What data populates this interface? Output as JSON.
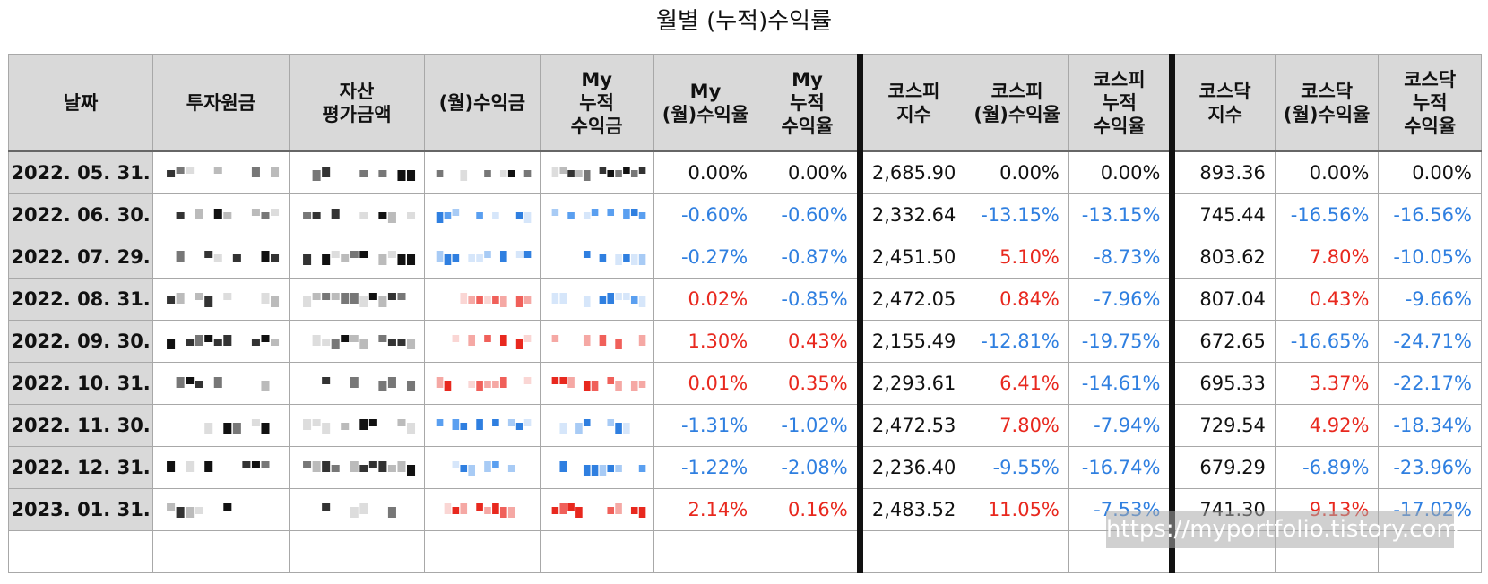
{
  "title": "월별 (누적)수익률",
  "headers": [
    [
      "날짜"
    ],
    [
      "투자원금"
    ],
    [
      "자산",
      "평가금액"
    ],
    [
      "(월)수익금"
    ],
    [
      "My",
      "누적",
      "수익금"
    ],
    [
      "My",
      "(월)수익율"
    ],
    [
      "My",
      "누적",
      "수익율"
    ],
    [
      "코스피",
      "지수"
    ],
    [
      "코스피",
      "(월)수익율"
    ],
    [
      "코스피",
      "누적",
      "수익율"
    ],
    [
      "코스닥",
      "지수"
    ],
    [
      "코스닥",
      "(월)수익율"
    ],
    [
      "코스닥",
      "누적",
      "수익율"
    ]
  ],
  "rows": [
    {
      "date": "2022. 05. 31.",
      "my_month": "0.00%",
      "my_cum": "0.00%",
      "kospi": "2,685.90",
      "kospi_month": "0.00%",
      "kospi_cum": "0.00%",
      "kosdaq": "893.36",
      "kosdaq_month": "0.00%",
      "kosdaq_cum": "0.00%"
    },
    {
      "date": "2022. 06. 30.",
      "my_month": "-0.60%",
      "my_cum": "-0.60%",
      "kospi": "2,332.64",
      "kospi_month": "-13.15%",
      "kospi_cum": "-13.15%",
      "kosdaq": "745.44",
      "kosdaq_month": "-16.56%",
      "kosdaq_cum": "-16.56%"
    },
    {
      "date": "2022. 07. 29.",
      "my_month": "-0.27%",
      "my_cum": "-0.87%",
      "kospi": "2,451.50",
      "kospi_month": "5.10%",
      "kospi_cum": "-8.73%",
      "kosdaq": "803.62",
      "kosdaq_month": "7.80%",
      "kosdaq_cum": "-10.05%"
    },
    {
      "date": "2022. 08. 31.",
      "my_month": "0.02%",
      "my_cum": "-0.85%",
      "kospi": "2,472.05",
      "kospi_month": "0.84%",
      "kospi_cum": "-7.96%",
      "kosdaq": "807.04",
      "kosdaq_month": "0.43%",
      "kosdaq_cum": "-9.66%"
    },
    {
      "date": "2022. 09. 30.",
      "my_month": "1.30%",
      "my_cum": "0.43%",
      "kospi": "2,155.49",
      "kospi_month": "-12.81%",
      "kospi_cum": "-19.75%",
      "kosdaq": "672.65",
      "kosdaq_month": "-16.65%",
      "kosdaq_cum": "-24.71%"
    },
    {
      "date": "2022. 10. 31.",
      "my_month": "0.01%",
      "my_cum": "0.35%",
      "kospi": "2,293.61",
      "kospi_month": "6.41%",
      "kospi_cum": "-14.61%",
      "kosdaq": "695.33",
      "kosdaq_month": "3.37%",
      "kosdaq_cum": "-22.17%"
    },
    {
      "date": "2022. 11. 30.",
      "my_month": "-1.31%",
      "my_cum": "-1.02%",
      "kospi": "2,472.53",
      "kospi_month": "7.80%",
      "kospi_cum": "-7.94%",
      "kosdaq": "729.54",
      "kosdaq_month": "4.92%",
      "kosdaq_cum": "-18.34%"
    },
    {
      "date": "2022. 12. 31.",
      "my_month": "-1.22%",
      "my_cum": "-2.08%",
      "kospi": "2,236.40",
      "kospi_month": "-9.55%",
      "kospi_cum": "-16.74%",
      "kosdaq": "679.29",
      "kosdaq_month": "-6.89%",
      "kosdaq_cum": "-23.96%"
    },
    {
      "date": "2023. 01. 31.",
      "my_month": "2.14%",
      "my_cum": "0.16%",
      "kospi": "2,483.52",
      "kospi_month": "11.05%",
      "kospi_cum": "-7.53%",
      "kosdaq": "741.30",
      "kosdaq_month": "9.13%",
      "kosdaq_cum": "-17.02%"
    }
  ],
  "watermark": "https://myportfolio.tistory.com",
  "colors": {
    "negative": "#2f7fe0",
    "positive": "#e8281e",
    "header_bg": "#d9d9d9"
  }
}
